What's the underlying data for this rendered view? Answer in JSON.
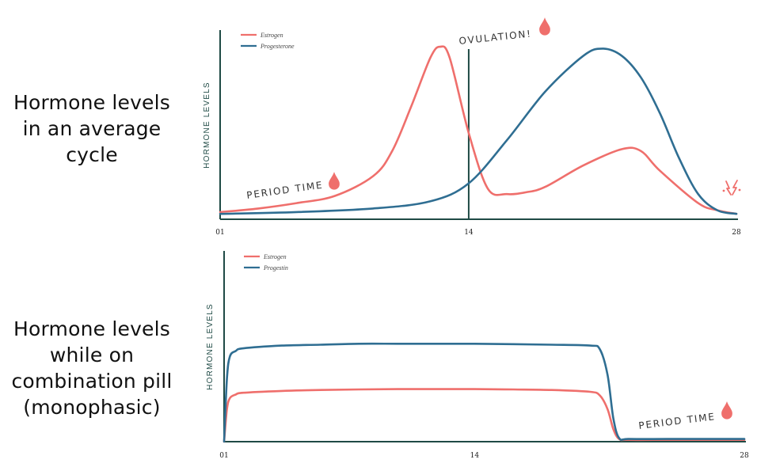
{
  "side_labels": {
    "top": [
      "Hormone levels",
      "in an average",
      "cycle"
    ],
    "bottom": [
      "Hormone levels",
      "while on",
      "combination pill",
      "(monophasic)"
    ]
  },
  "colors": {
    "estrogen": "#ef6f6c",
    "progesterone": "#2f6e92",
    "axis": "#1f4a45"
  },
  "chart_data": [
    {
      "type": "line",
      "title": "Hormone levels in an average cycle",
      "xlabel": "",
      "ylabel": "HORMONE LEVELS",
      "xlim": [
        1,
        28
      ],
      "ylim": [
        0,
        10
      ],
      "x_ticks": [
        "01",
        "14",
        "28"
      ],
      "x_tick_values": [
        1,
        14,
        28
      ],
      "legend": [
        "Estrogen",
        "Progesterone"
      ],
      "legend_position": "top-left",
      "vertical_line_x": 14,
      "annotations": {
        "ovulation": "OVULATION!",
        "period": "PERIOD TIME"
      },
      "series": [
        {
          "name": "Estrogen",
          "x": [
            1,
            3,
            5,
            7,
            9,
            10,
            11,
            12,
            12.5,
            13,
            14,
            15,
            16,
            17,
            18,
            20,
            22,
            23,
            24,
            26,
            27,
            28
          ],
          "y": [
            0.4,
            0.6,
            0.9,
            1.3,
            2.4,
            3.8,
            6.3,
            9.0,
            9.6,
            9.0,
            4.8,
            1.7,
            1.4,
            1.5,
            1.8,
            3.0,
            3.9,
            3.8,
            2.7,
            0.9,
            0.5,
            0.3
          ]
        },
        {
          "name": "Progesterone",
          "x": [
            1,
            5,
            9,
            12,
            14,
            16,
            18,
            20,
            21,
            22,
            23,
            24,
            25,
            26,
            27,
            28
          ],
          "y": [
            0.3,
            0.4,
            0.6,
            1.0,
            2.0,
            4.4,
            7.1,
            9.1,
            9.5,
            9.1,
            7.9,
            5.9,
            3.4,
            1.4,
            0.5,
            0.3
          ]
        }
      ]
    },
    {
      "type": "line",
      "title": "Hormone levels while on combination pill (monophasic)",
      "xlabel": "",
      "ylabel": "HORMONE LEVELS",
      "xlim": [
        1,
        28
      ],
      "ylim": [
        0,
        10
      ],
      "x_ticks": [
        "01",
        "14",
        "28"
      ],
      "x_tick_values": [
        1,
        14,
        28
      ],
      "legend": [
        "Estrogen",
        "Progestin"
      ],
      "legend_position": "top-left",
      "annotations": {
        "period": "PERIOD TIME"
      },
      "series": [
        {
          "name": "Estrogen",
          "x": [
            1,
            1.15,
            1.3,
            1.6,
            2,
            4,
            6,
            8,
            10,
            12,
            14,
            16,
            18,
            20,
            20.5,
            20.9,
            21.2,
            21.5,
            22,
            24,
            26,
            28
          ],
          "y": [
            0,
            1.8,
            2.4,
            2.6,
            2.7,
            2.8,
            2.85,
            2.88,
            2.9,
            2.9,
            2.9,
            2.88,
            2.85,
            2.75,
            2.55,
            1.8,
            0.7,
            0.15,
            0.1,
            0.1,
            0.1,
            0.1
          ]
        },
        {
          "name": "Progestin",
          "x": [
            1,
            1.15,
            1.3,
            1.6,
            2,
            4,
            6,
            8,
            10,
            12,
            14,
            16,
            18,
            20,
            20.5,
            20.9,
            21.2,
            21.5,
            22,
            24,
            26,
            28
          ],
          "y": [
            0,
            3.5,
            4.7,
            5.0,
            5.15,
            5.3,
            5.35,
            5.4,
            5.4,
            5.4,
            5.4,
            5.38,
            5.35,
            5.3,
            5.1,
            3.7,
            1.3,
            0.2,
            0.15,
            0.15,
            0.15,
            0.15
          ]
        }
      ]
    }
  ]
}
